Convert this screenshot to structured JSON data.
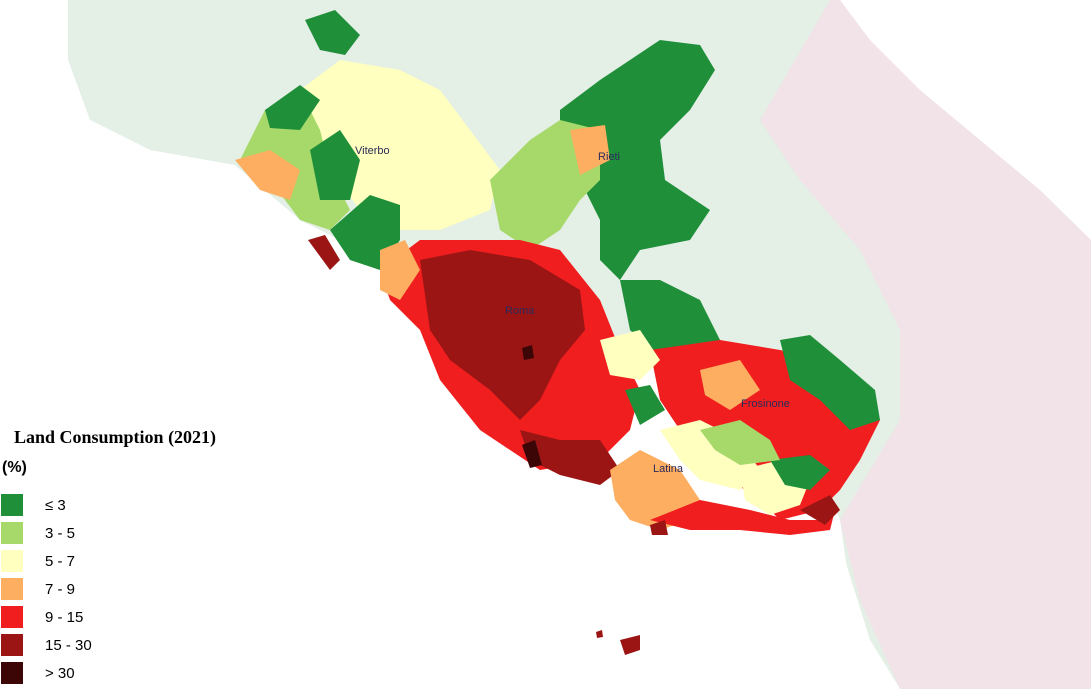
{
  "legend": {
    "title": "Land Consumption (2021)",
    "unit": "(%)",
    "classes": [
      {
        "label": "≤ 3",
        "color": "#1f8f3a"
      },
      {
        "label": "3 - 5",
        "color": "#a6d96a"
      },
      {
        "label": "5 - 7",
        "color": "#ffffbf"
      },
      {
        "label": "7 - 9",
        "color": "#fdae61"
      },
      {
        "label": "9 - 15",
        "color": "#f01e1e"
      },
      {
        "label": "15 - 30",
        "color": "#9b1515"
      },
      {
        "label": "> 30",
        "color": "#3d0606"
      }
    ]
  },
  "cities": {
    "viterbo": "Viterbo",
    "rieti": "Rieti",
    "roma": "Roma",
    "frosinone": "Frosinone",
    "latina": "Latina"
  }
}
